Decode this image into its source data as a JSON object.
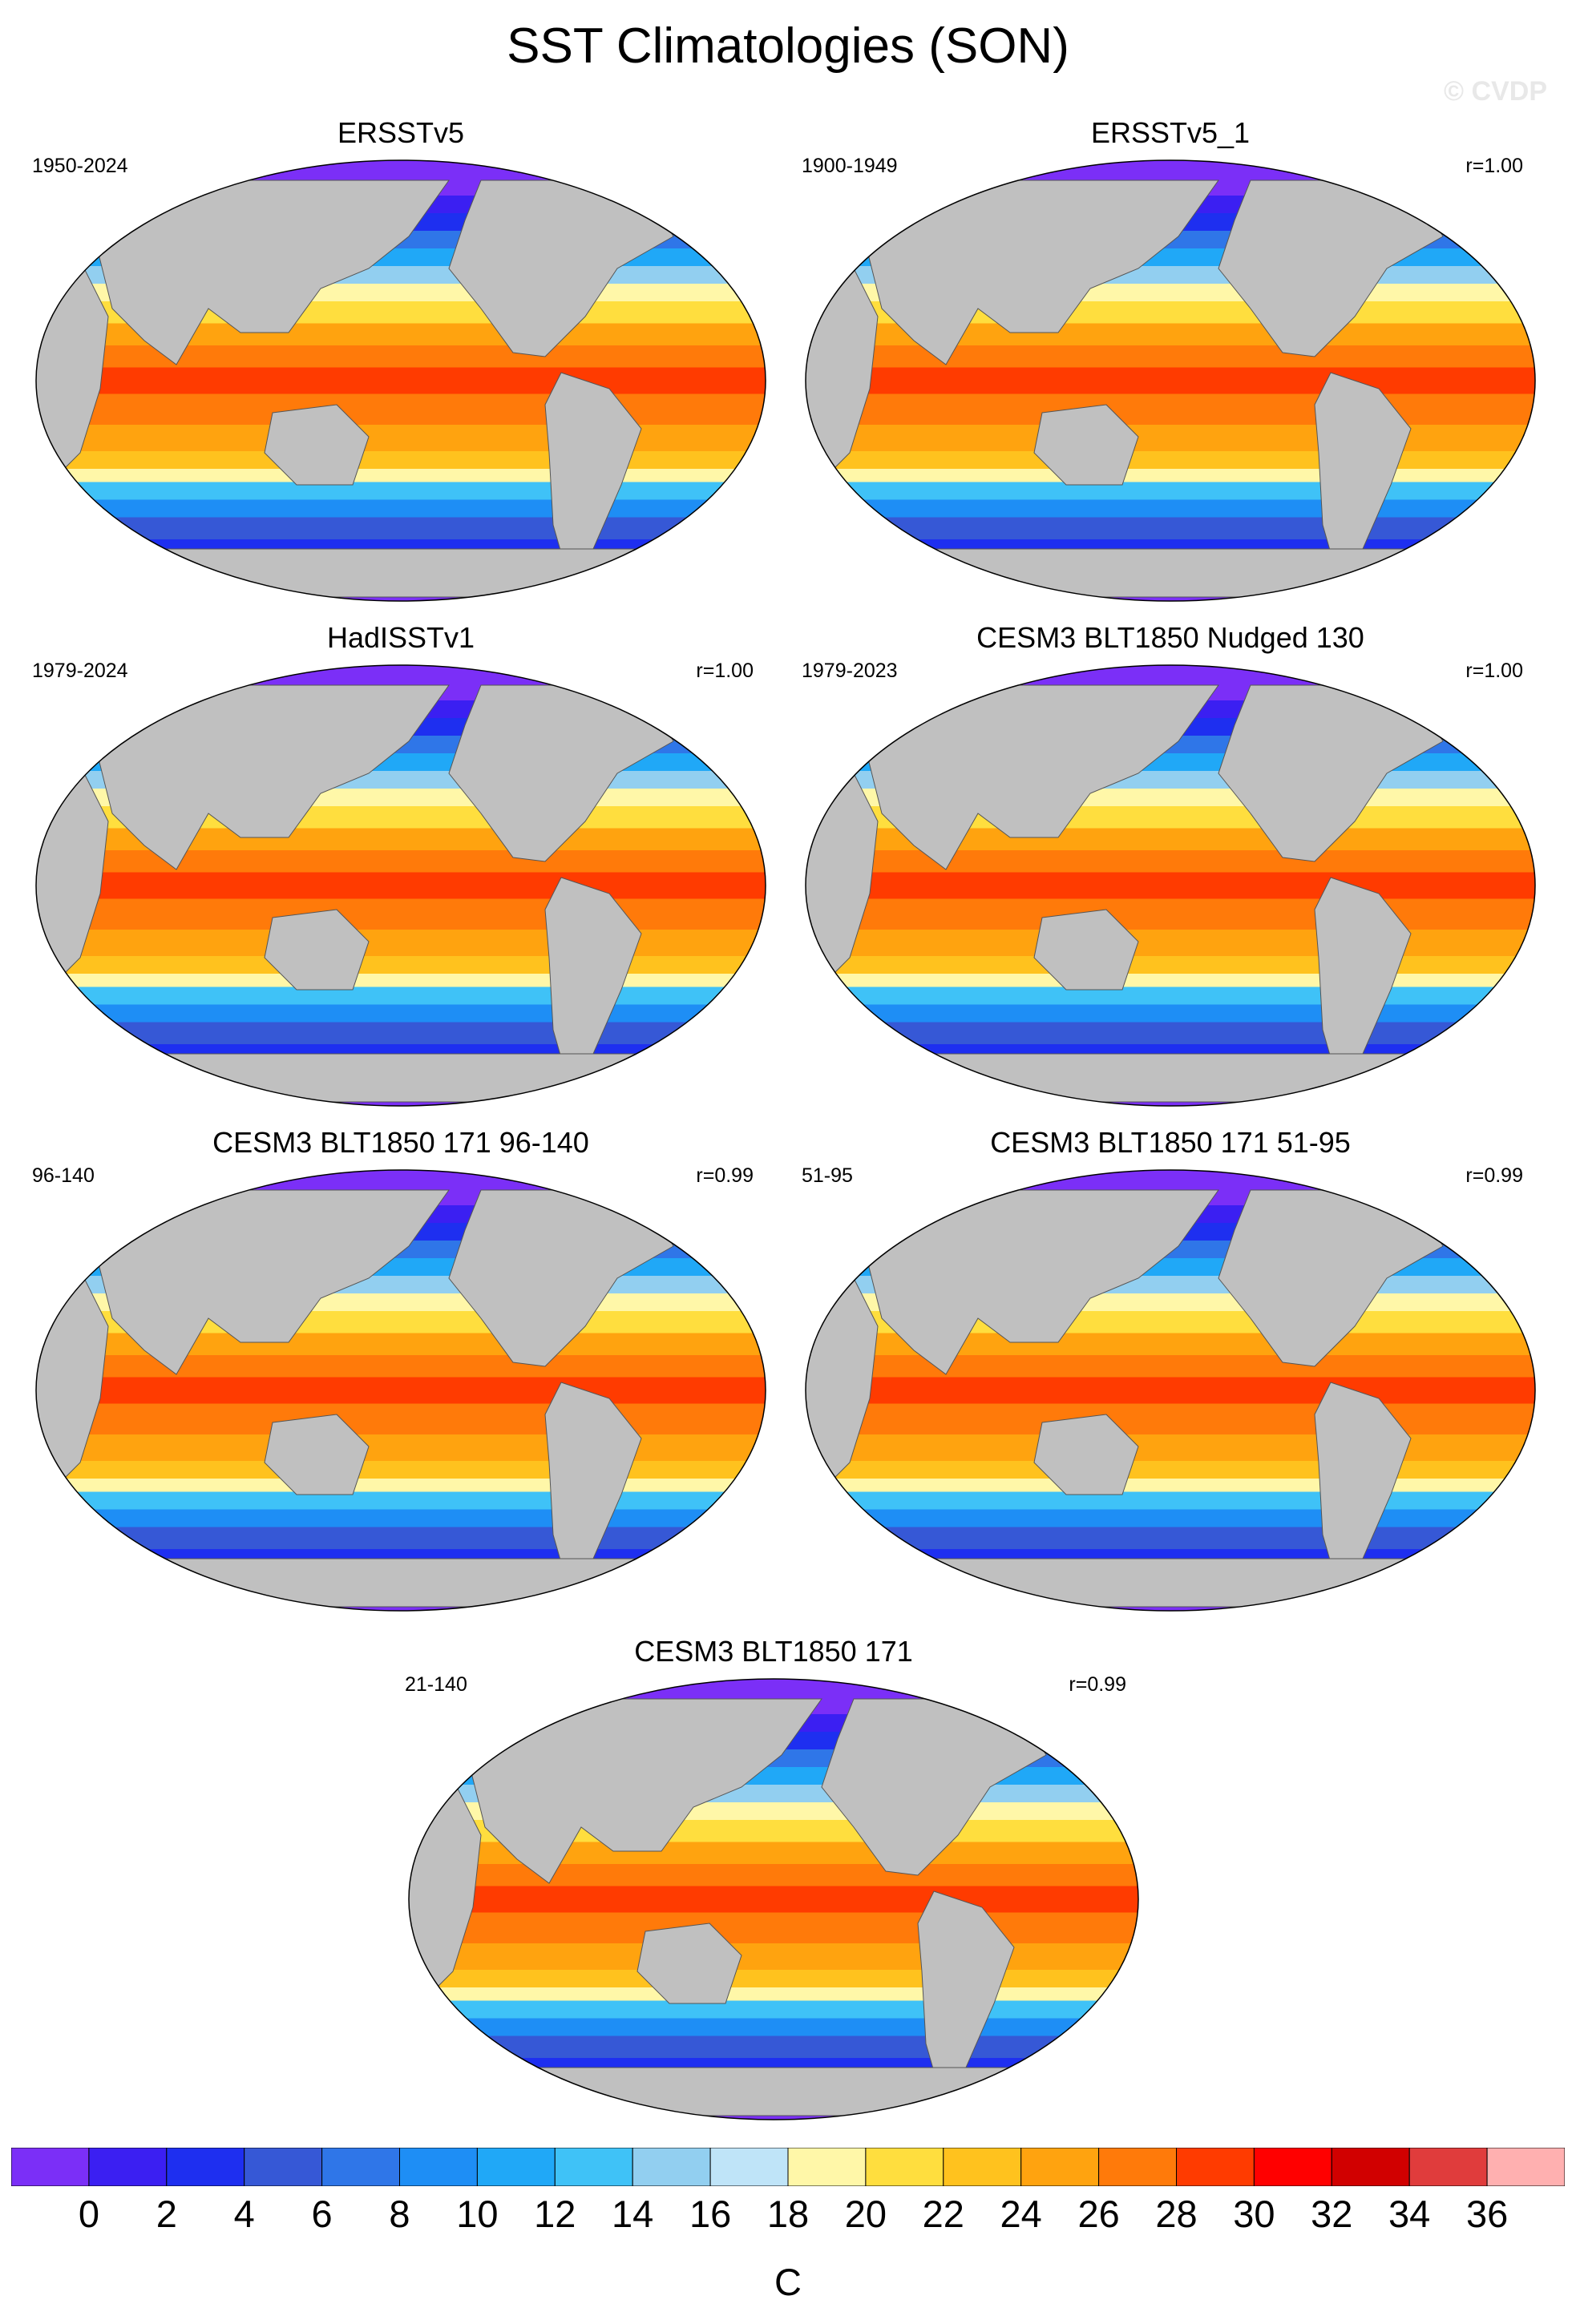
{
  "title": "SST Climatologies (SON)",
  "credit": "© CVDP",
  "panels": [
    {
      "title": "ERSSTv5",
      "years": "1950-2024",
      "corr": ""
    },
    {
      "title": "ERSSTv5_1",
      "years": "1900-1949",
      "corr": "r=1.00"
    },
    {
      "title": "HadISSTv1",
      "years": "1979-2024",
      "corr": "r=1.00"
    },
    {
      "title": "CESM3 BLT1850 Nudged 130",
      "years": "1979-2023",
      "corr": "r=1.00"
    },
    {
      "title": "CESM3 BLT1850 171 96-140",
      "years": "96-140",
      "corr": "r=0.99"
    },
    {
      "title": "CESM3 BLT1850 171 51-95",
      "years": "51-95",
      "corr": "r=0.99"
    },
    {
      "title": "CESM3 BLT1850 171",
      "years": "21-140",
      "corr": "r=0.99"
    }
  ],
  "colorbar": {
    "units": "C",
    "tick_labels": [
      "0",
      "2",
      "4",
      "6",
      "8",
      "10",
      "12",
      "14",
      "16",
      "18",
      "20",
      "22",
      "24",
      "26",
      "28",
      "30",
      "32",
      "34",
      "36"
    ],
    "colors": [
      "#7b2ff7",
      "#3b1ff2",
      "#1e2ff0",
      "#3658d6",
      "#2f76e8",
      "#1e8ef5",
      "#20a8f7",
      "#3fc2f7",
      "#92cff0",
      "#bfe4f8",
      "#fff7a8",
      "#ffde3e",
      "#ffc21e",
      "#ffa30f",
      "#ff7a0a",
      "#ff3b00",
      "#ff0000",
      "#d10000",
      "#e03c3c",
      "#ffb0b0"
    ]
  },
  "chart_data": {
    "type": "heatmap",
    "title": "SST Climatologies (SON)",
    "units": "C",
    "levels": [
      0,
      2,
      4,
      6,
      8,
      10,
      12,
      14,
      16,
      18,
      20,
      22,
      24,
      26,
      28,
      30,
      32,
      34,
      36
    ],
    "projection": "Robinson global",
    "land_color": "#c0c0c0"
  }
}
